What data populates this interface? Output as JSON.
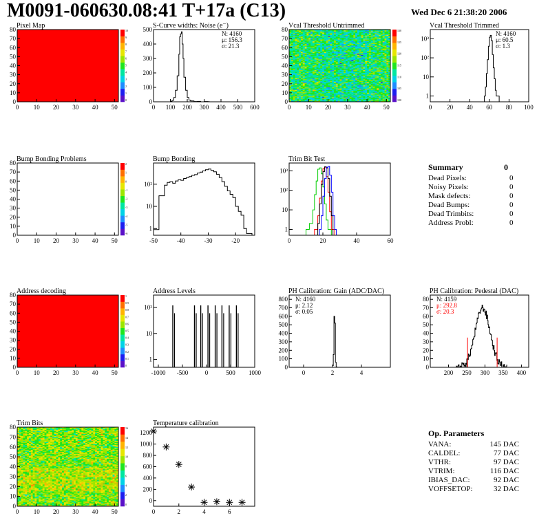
{
  "header": {
    "title": "M0091-060630.08:41 T+17a (C13)",
    "date": "Wed Dec  6 21:38:20 2006"
  },
  "colors": {
    "red": "#ff0000",
    "blue": "#0000ff",
    "green": "#00cc00"
  },
  "palette": [
    "#5a10c8",
    "#1e1ef0",
    "#1e8cff",
    "#00d2e6",
    "#00e6a0",
    "#1ee61e",
    "#9be600",
    "#e6e600",
    "#ffb400",
    "#ff6e00",
    "#ff0000"
  ],
  "summary": {
    "title": "Summary",
    "value": "0",
    "rows": [
      {
        "label": "Dead Pixels:",
        "value": "0"
      },
      {
        "label": "Noisy Pixels:",
        "value": "0"
      },
      {
        "label": "Mask defects:",
        "value": "0"
      },
      {
        "label": "Dead Bumps:",
        "value": "0"
      },
      {
        "label": "Dead Trimbits:",
        "value": "0"
      },
      {
        "label": "Address Probl:",
        "value": "0"
      }
    ]
  },
  "op_params": {
    "title": "Op. Parameters",
    "rows": [
      {
        "label": "VANA:",
        "value": "145 DAC"
      },
      {
        "label": "CALDEL:",
        "value": "77 DAC"
      },
      {
        "label": "VTHR:",
        "value": "97 DAC"
      },
      {
        "label": "VTRIM:",
        "value": "116 DAC"
      },
      {
        "label": "IBIAS_DAC:",
        "value": "92 DAC"
      },
      {
        "label": "VOFFSETOP:",
        "value": "32 DAC"
      }
    ]
  },
  "chart_data": [
    {
      "id": "pixel-map",
      "type": "heatmap",
      "title": "Pixel Map",
      "xlim": [
        0,
        52
      ],
      "ylim": [
        0,
        80
      ],
      "xticks": [
        0,
        10,
        20,
        30,
        40,
        50
      ],
      "yticks": [
        0,
        10,
        20,
        30,
        40,
        50,
        60,
        70,
        80
      ],
      "zticks": [
        "10",
        "9",
        "8",
        "7",
        "6",
        "5",
        "4",
        "3",
        "2",
        "1",
        "0"
      ],
      "fill": "uniform",
      "value": 10
    },
    {
      "id": "scurve-widths",
      "type": "histogram",
      "title": "S-Curve widths: Noise (e⁻)",
      "xlim": [
        0,
        600
      ],
      "ylim": [
        0,
        500
      ],
      "xticks": [
        0,
        100,
        200,
        300,
        400,
        500,
        600
      ],
      "yticks": [
        0,
        100,
        200,
        300,
        400,
        500
      ],
      "stats": [
        "N: 4160",
        "μ: 156.3",
        "σ: 21.3"
      ],
      "bins": [
        [
          80,
          0
        ],
        [
          100,
          3
        ],
        [
          110,
          10
        ],
        [
          120,
          30
        ],
        [
          130,
          80
        ],
        [
          140,
          180
        ],
        [
          150,
          330
        ],
        [
          155,
          450
        ],
        [
          160,
          470
        ],
        [
          165,
          485
        ],
        [
          170,
          400
        ],
        [
          175,
          300
        ],
        [
          180,
          170
        ],
        [
          190,
          80
        ],
        [
          200,
          30
        ],
        [
          210,
          12
        ],
        [
          220,
          6
        ],
        [
          240,
          2
        ],
        [
          260,
          3
        ],
        [
          280,
          0
        ],
        [
          300,
          2
        ],
        [
          320,
          1
        ],
        [
          330,
          0
        ]
      ]
    },
    {
      "id": "vcal-untrimmed",
      "type": "heatmap",
      "title": "Vcal Threshold Untrimmed",
      "xlim": [
        0,
        52
      ],
      "ylim": [
        0,
        80
      ],
      "xticks": [
        0,
        10,
        20,
        30,
        40,
        50
      ],
      "yticks": [
        0,
        10,
        20,
        30,
        40,
        50,
        60,
        70,
        80
      ],
      "zticks": [
        "130",
        "125",
        "120",
        "115",
        "110",
        "105",
        "100"
      ],
      "fill": "noise"
    },
    {
      "id": "vcal-trimmed",
      "type": "histogram",
      "log": true,
      "title": "Vcal Threshold Trimmed",
      "xlim": [
        0,
        100
      ],
      "ylim": [
        0.5,
        3000
      ],
      "xticks": [
        0,
        20,
        40,
        60,
        80,
        100
      ],
      "yticklabels": [
        "1",
        "10",
        "10²",
        "10³"
      ],
      "stats": [
        "N: 4160",
        "μ: 60.5",
        "σ:  1.3"
      ],
      "bins": [
        [
          55,
          1
        ],
        [
          56,
          3
        ],
        [
          57,
          15
        ],
        [
          58,
          80
        ],
        [
          59,
          400
        ],
        [
          60,
          1200
        ],
        [
          61,
          1500
        ],
        [
          62,
          800
        ],
        [
          63,
          150
        ],
        [
          64,
          30
        ],
        [
          65,
          8
        ],
        [
          66,
          2
        ],
        [
          67,
          1
        ],
        [
          68,
          1
        ],
        [
          69,
          1
        ]
      ]
    },
    {
      "id": "bump-bonding-problems",
      "type": "heatmap",
      "title": "Bump Bonding Problems",
      "xlim": [
        0,
        52
      ],
      "ylim": [
        0,
        80
      ],
      "xticks": [
        0,
        10,
        20,
        30,
        40,
        50
      ],
      "yticks": [
        0,
        10,
        20,
        30,
        40,
        50,
        60,
        70,
        80
      ],
      "zticks": [
        "2",
        "1",
        "0",
        "-1",
        "-2",
        "-3",
        "-4",
        "-5",
        "-6"
      ],
      "fill": "empty"
    },
    {
      "id": "bump-bonding",
      "type": "histogram",
      "log": true,
      "title": "Bump Bonding",
      "xlim": [
        -50,
        -13
      ],
      "ylim": [
        0.5,
        900
      ],
      "xticks": [
        -50,
        -40,
        -30,
        -20
      ],
      "yticklabels": [
        "1",
        "10",
        "10²"
      ],
      "bins": [
        [
          -50,
          0.9
        ],
        [
          -48,
          30
        ],
        [
          -46,
          90
        ],
        [
          -45,
          120
        ],
        [
          -44,
          130
        ],
        [
          -43,
          110
        ],
        [
          -42,
          140
        ],
        [
          -41,
          160
        ],
        [
          -40,
          150
        ],
        [
          -39,
          180
        ],
        [
          -38,
          200
        ],
        [
          -37,
          220
        ],
        [
          -36,
          250
        ],
        [
          -35,
          270
        ],
        [
          -34,
          320
        ],
        [
          -33,
          350
        ],
        [
          -32,
          400
        ],
        [
          -31,
          450
        ],
        [
          -30,
          480
        ],
        [
          -29,
          420
        ],
        [
          -28,
          360
        ],
        [
          -27,
          280
        ],
        [
          -26,
          200
        ],
        [
          -25,
          130
        ],
        [
          -24,
          80
        ],
        [
          -23,
          50
        ],
        [
          -22,
          35
        ],
        [
          -21,
          25
        ],
        [
          -20,
          10
        ],
        [
          -19,
          6
        ],
        [
          -18,
          4
        ],
        [
          -17,
          1
        ],
        [
          -16,
          0.6
        ]
      ]
    },
    {
      "id": "trim-bit-test",
      "type": "histogram",
      "log": true,
      "title": "Trim Bit Test",
      "xlim": [
        0,
        60
      ],
      "ylim": [
        0.5,
        2500
      ],
      "xticks": [
        0,
        20,
        40,
        60
      ],
      "yticklabels": [
        "1",
        "10",
        "10²",
        "10³"
      ],
      "series": [
        {
          "color": "#00cc00",
          "bins": [
            [
              10,
              1
            ],
            [
              12,
              2
            ],
            [
              14,
              10
            ],
            [
              15,
              60
            ],
            [
              16,
              300
            ],
            [
              17,
              1200
            ],
            [
              18,
              1400
            ],
            [
              19,
              700
            ],
            [
              20,
              150
            ],
            [
              21,
              20
            ],
            [
              22,
              3
            ],
            [
              23,
              1
            ]
          ]
        },
        {
          "color": "#ff0000",
          "bins": [
            [
              15,
              1
            ],
            [
              17,
              5
            ],
            [
              18,
              40
            ],
            [
              19,
              300
            ],
            [
              20,
              1300
            ],
            [
              21,
              1500
            ],
            [
              22,
              500
            ],
            [
              23,
              80
            ],
            [
              24,
              8
            ],
            [
              25,
              1
            ]
          ]
        },
        {
          "color": "#000000",
          "bins": [
            [
              17,
              2
            ],
            [
              18,
              20
            ],
            [
              19,
              200
            ],
            [
              20,
              900
            ],
            [
              21,
              1600
            ],
            [
              22,
              1400
            ],
            [
              23,
              400
            ],
            [
              24,
              50
            ],
            [
              25,
              5
            ]
          ]
        },
        {
          "color": "#0000ff",
          "bins": [
            [
              18,
              1
            ],
            [
              19,
              5
            ],
            [
              20,
              50
            ],
            [
              21,
              400
            ],
            [
              22,
              1500
            ],
            [
              23,
              1700
            ],
            [
              24,
              600
            ],
            [
              25,
              80
            ],
            [
              26,
              5
            ],
            [
              27,
              1
            ]
          ]
        }
      ]
    },
    {
      "id": "address-decoding",
      "type": "heatmap",
      "title": "Address decoding",
      "xlim": [
        0,
        52
      ],
      "ylim": [
        0,
        80
      ],
      "xticks": [
        0,
        10,
        20,
        30,
        40,
        50
      ],
      "yticks": [
        0,
        10,
        20,
        30,
        40,
        50,
        60,
        70,
        80
      ],
      "zticks": [
        "1",
        "0.9",
        "0.8",
        "0.7",
        "0.6",
        "0.5",
        "0.4",
        "0.3",
        "0.2",
        "0.1",
        "0"
      ],
      "fill": "uniform",
      "value": 1
    },
    {
      "id": "address-levels",
      "type": "histogram",
      "log": true,
      "title": "Address Levels",
      "xlim": [
        -1100,
        1000
      ],
      "ylim": [
        0.5,
        300
      ],
      "xticks": [
        -1000,
        -500,
        0,
        500,
        1000
      ],
      "yticklabels": [
        "1",
        "10",
        "10²"
      ],
      "spikes": [
        -700,
        -250,
        -120,
        30,
        180,
        320,
        470,
        620
      ]
    },
    {
      "id": "ph-gain",
      "type": "histogram",
      "title": "PH Calibration: Gain (ADC/DAC)",
      "xlim": [
        -1,
        6
      ],
      "ylim": [
        0,
        850
      ],
      "xticks": [
        0,
        2,
        4
      ],
      "yticks": [
        0,
        100,
        200,
        300,
        400,
        500,
        600,
        700,
        800
      ],
      "stats": [
        "N: 4160",
        "μ: 2.12",
        "σ: 0.05"
      ],
      "bins": [
        [
          2.0,
          20
        ],
        [
          2.05,
          150
        ],
        [
          2.1,
          600
        ],
        [
          2.15,
          520
        ],
        [
          2.2,
          60
        ],
        [
          2.25,
          5
        ]
      ]
    },
    {
      "id": "ph-pedestal",
      "type": "histogram",
      "title": "PH Calibration: Pedestal (DAC)",
      "xlim": [
        150,
        420
      ],
      "ylim": [
        0,
        85
      ],
      "xticks": [
        200,
        250,
        300,
        350,
        400
      ],
      "yticks": [
        0,
        10,
        20,
        30,
        40,
        50,
        60,
        70,
        80
      ],
      "stats": [
        "N: 4159",
        "μ: 292.8",
        "σ: 20.3"
      ],
      "statcolors": [
        "#000000",
        "#ff0000",
        "#ff0000"
      ],
      "mu": 292.8,
      "sigma": 20.3
    },
    {
      "id": "trim-bits",
      "type": "heatmap",
      "title": "Trim Bits",
      "xlim": [
        0,
        52
      ],
      "ylim": [
        0,
        80
      ],
      "xticks": [
        0,
        10,
        20,
        30,
        40,
        50
      ],
      "yticks": [
        0,
        10,
        20,
        30,
        40,
        50,
        60,
        70,
        80
      ],
      "zticks": [
        "16",
        "14",
        "12",
        "10",
        "8",
        "6",
        "4",
        "2",
        "0"
      ],
      "fill": "noise2"
    },
    {
      "id": "temperature-calibration",
      "type": "scatter",
      "title": "Temperature calibration",
      "xlim": [
        0,
        8
      ],
      "ylim": [
        -100,
        1300
      ],
      "xticks": [
        0,
        2,
        4,
        6
      ],
      "yticks": [
        0,
        200,
        400,
        600,
        800,
        1000,
        1200
      ],
      "x": [
        0,
        1,
        2,
        3,
        4,
        5,
        6,
        7
      ],
      "y": [
        1230,
        950,
        640,
        240,
        -30,
        -20,
        -30,
        -30
      ]
    }
  ]
}
